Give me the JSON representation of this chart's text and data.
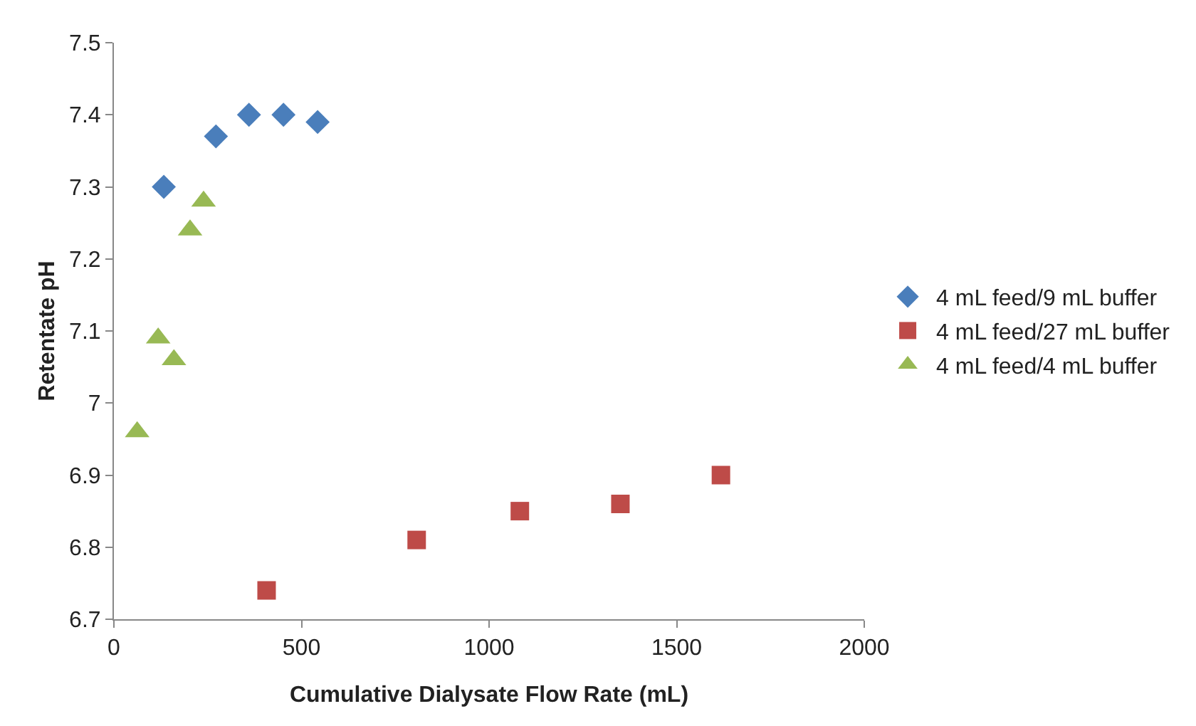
{
  "chart_data": {
    "type": "scatter",
    "xlabel": "Cumulative Dialysate Flow Rate (mL)",
    "ylabel": "Retentate pH",
    "xlim": [
      0,
      2000
    ],
    "xticks": [
      0,
      500,
      1000,
      1500,
      2000
    ],
    "ylim": [
      6.7,
      7.5
    ],
    "yticks": [
      6.7,
      6.8,
      6.9,
      7,
      7.1,
      7.2,
      7.3,
      7.4,
      7.5
    ],
    "grid": false,
    "legend": "right",
    "series": [
      {
        "name": "4 mL feed/9 mL buffer",
        "color": "#4a7ebb",
        "marker": "diamond",
        "x": [
          133,
          272,
          360,
          452,
          543
        ],
        "values": [
          7.3,
          7.37,
          7.4,
          7.4,
          7.39
        ]
      },
      {
        "name": "4 mL feed/27 mL buffer",
        "color": "#be4b48",
        "marker": "square",
        "x": [
          407,
          807,
          1082,
          1350,
          1618
        ],
        "values": [
          6.74,
          6.81,
          6.85,
          6.86,
          6.9
        ]
      },
      {
        "name": "4 mL feed/4 mL buffer",
        "color": "#98b954",
        "marker": "triangle",
        "x": [
          62,
          118,
          160,
          203,
          239
        ],
        "values": [
          6.96,
          7.09,
          7.06,
          7.24,
          7.28
        ]
      }
    ]
  }
}
